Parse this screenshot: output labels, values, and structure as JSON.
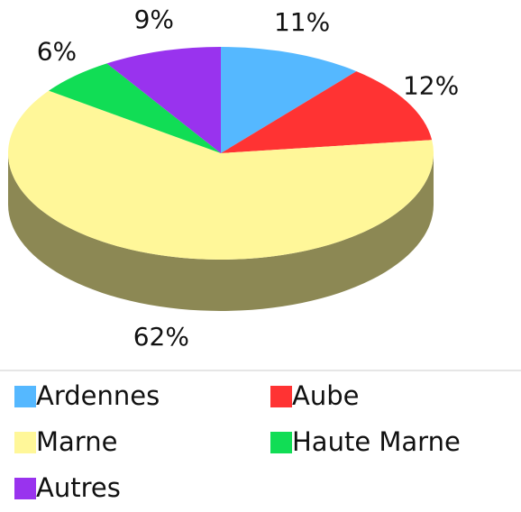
{
  "chart_data": {
    "type": "pie",
    "categories": [
      "Ardennes",
      "Aube",
      "Marne",
      "Haute Marne",
      "Autres"
    ],
    "values": [
      11,
      12,
      62,
      6,
      9
    ],
    "value_labels": [
      "11%",
      "12%",
      "62%",
      "6%",
      "9%"
    ],
    "colors": [
      "#55b8ff",
      "#ff3333",
      "#fff799",
      "#11dd55",
      "#9933ee"
    ],
    "legend": "bottom"
  }
}
